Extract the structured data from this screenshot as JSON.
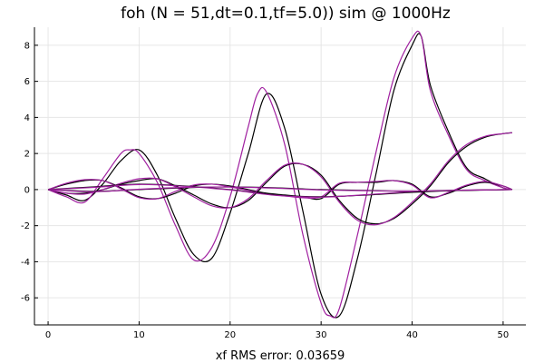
{
  "chart_data": {
    "type": "line",
    "title": "foh (N = 51,dt=0.1,tf=5.0)) sim @ 1000Hz",
    "xlabel": "xf RMS error: 0.03659",
    "ylabel": "",
    "xlim": [
      -1.5,
      52.5
    ],
    "ylim": [
      -7.5,
      9.0
    ],
    "xticks": [
      0,
      10,
      20,
      30,
      40,
      50
    ],
    "yticks": [
      -6,
      -4,
      -2,
      0,
      2,
      4,
      6,
      8
    ],
    "grid": true,
    "legend": "none",
    "colors": {
      "reference": "#000000",
      "simulation": "#a020a0"
    },
    "series": [
      {
        "style": "reference",
        "x": [
          0,
          2,
          4,
          6,
          8,
          10,
          12,
          14,
          16,
          18,
          20,
          22,
          24,
          26,
          28,
          30,
          32,
          34,
          36,
          38,
          40,
          41,
          42,
          44,
          46,
          48,
          50,
          51
        ],
        "values": [
          0,
          -0.3,
          -0.6,
          0.3,
          1.6,
          2.2,
          0.8,
          -1.6,
          -3.6,
          -3.8,
          -1.3,
          2.0,
          5.3,
          3.4,
          -1.2,
          -5.8,
          -7.0,
          -3.8,
          0.8,
          5.5,
          8.0,
          8.5,
          5.8,
          3.2,
          1.2,
          0.6,
          0.1,
          0
        ]
      },
      {
        "style": "simulation",
        "x": [
          0,
          2,
          4,
          6,
          8,
          9,
          10,
          12,
          14,
          16,
          18,
          20,
          22,
          23,
          24,
          26,
          28,
          30,
          31,
          32,
          34,
          36,
          38,
          40,
          41,
          42,
          44,
          46,
          48,
          50,
          51
        ],
        "values": [
          0,
          -0.4,
          -0.7,
          0.6,
          2.0,
          2.2,
          2.0,
          0.4,
          -2.0,
          -3.9,
          -3.2,
          -0.4,
          3.5,
          5.3,
          5.4,
          2.5,
          -2.5,
          -6.3,
          -7.0,
          -6.6,
          -2.5,
          2.0,
          6.2,
          8.4,
          8.5,
          5.5,
          3.0,
          1.1,
          0.5,
          0.1,
          0
        ]
      },
      {
        "style": "reference",
        "x": [
          0,
          2,
          4,
          6,
          8,
          10,
          12,
          14,
          16,
          18,
          20,
          22,
          24,
          26,
          28,
          30,
          32,
          34,
          36,
          38,
          40,
          42,
          44,
          46,
          48,
          50,
          51
        ],
        "values": [
          0,
          0.3,
          0.5,
          0.5,
          0.1,
          -0.4,
          -0.5,
          -0.2,
          0.2,
          0.3,
          0.2,
          0,
          -0.2,
          -0.3,
          -0.4,
          -0.5,
          0.3,
          0.4,
          0.4,
          0.5,
          0.3,
          -0.4,
          -0.2,
          0.2,
          0.4,
          0.2,
          0
        ]
      },
      {
        "style": "simulation",
        "x": [
          0,
          2,
          4,
          6,
          8,
          10,
          12,
          14,
          16,
          18,
          20,
          22,
          24,
          26,
          28,
          30,
          32,
          34,
          36,
          38,
          40,
          42,
          44,
          46,
          48,
          50,
          51
        ],
        "values": [
          0,
          0.35,
          0.55,
          0.5,
          0.05,
          -0.45,
          -0.5,
          -0.1,
          0.25,
          0.3,
          0.15,
          -0.05,
          -0.25,
          -0.35,
          -0.45,
          -0.4,
          0.35,
          0.4,
          0.45,
          0.5,
          0.25,
          -0.45,
          -0.15,
          0.25,
          0.45,
          0.2,
          0
        ]
      },
      {
        "style": "reference",
        "x": [
          0,
          2,
          4,
          6,
          8,
          10,
          12,
          14,
          16,
          18,
          20,
          22,
          24,
          26,
          28,
          30,
          32,
          34,
          36,
          38,
          40,
          42,
          44,
          46,
          48,
          50,
          51
        ],
        "values": [
          0,
          -0.2,
          -0.2,
          0,
          0.3,
          0.5,
          0.6,
          0.2,
          -0.3,
          -0.8,
          -1.0,
          -0.6,
          0.4,
          1.3,
          1.4,
          0.8,
          -0.6,
          -1.6,
          -1.9,
          -1.6,
          -0.8,
          0.2,
          1.5,
          2.4,
          2.9,
          3.1,
          3.15
        ]
      },
      {
        "style": "simulation",
        "x": [
          0,
          2,
          4,
          6,
          8,
          10,
          12,
          14,
          16,
          18,
          20,
          22,
          24,
          26,
          28,
          30,
          32,
          34,
          36,
          38,
          40,
          42,
          44,
          46,
          48,
          50,
          51
        ],
        "values": [
          0,
          -0.2,
          -0.25,
          0,
          0.35,
          0.6,
          0.6,
          0.15,
          -0.4,
          -0.9,
          -1.0,
          -0.5,
          0.5,
          1.35,
          1.4,
          0.7,
          -0.7,
          -1.7,
          -1.95,
          -1.55,
          -0.7,
          0.3,
          1.6,
          2.5,
          2.95,
          3.1,
          3.15
        ]
      },
      {
        "style": "reference",
        "x": [
          0,
          5,
          10,
          15,
          20,
          25,
          30,
          35,
          40,
          45,
          51
        ],
        "values": [
          0,
          0.15,
          0.3,
          0.2,
          0,
          -0.3,
          -0.4,
          -0.3,
          -0.15,
          -0.05,
          0
        ]
      },
      {
        "style": "simulation",
        "x": [
          0,
          5,
          10,
          15,
          20,
          25,
          30,
          35,
          40,
          45,
          51
        ],
        "values": [
          0,
          0.12,
          0.28,
          0.18,
          -0.02,
          -0.32,
          -0.42,
          -0.28,
          -0.12,
          -0.04,
          0
        ]
      },
      {
        "style": "reference",
        "x": [
          0,
          5,
          10,
          15,
          20,
          25,
          30,
          35,
          40,
          45,
          51
        ],
        "values": [
          0,
          -0.1,
          0,
          0.1,
          0.15,
          0.1,
          0,
          -0.05,
          -0.1,
          -0.05,
          0
        ]
      },
      {
        "style": "simulation",
        "x": [
          0,
          5,
          10,
          15,
          20,
          25,
          30,
          35,
          40,
          45,
          51
        ],
        "values": [
          0,
          -0.12,
          0.02,
          0.12,
          0.14,
          0.08,
          -0.02,
          -0.06,
          -0.08,
          -0.04,
          0
        ]
      }
    ]
  }
}
